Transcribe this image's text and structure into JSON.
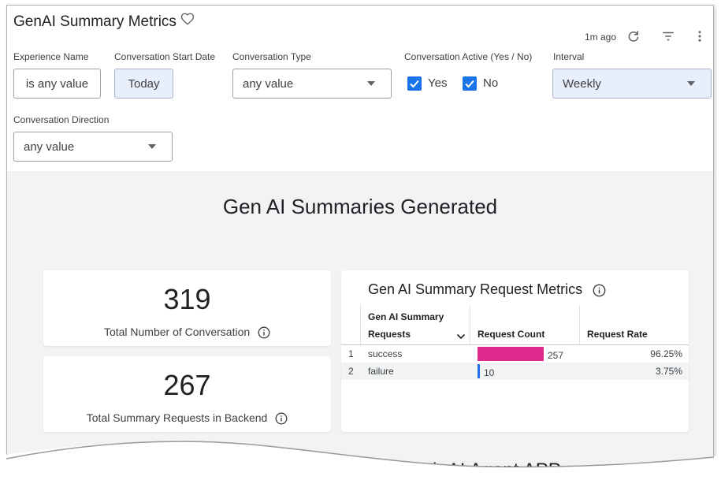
{
  "dashboard": {
    "title": "GenAI Summary Metrics",
    "updated": "1m ago",
    "icons": [
      "heart-icon",
      "refresh-icon",
      "filter-icon",
      "more-vert-icon"
    ]
  },
  "filters": {
    "experience_name": {
      "label": "Experience Name",
      "value": "is any value"
    },
    "conversation_start_date": {
      "label": "Conversation Start Date",
      "value": "Today"
    },
    "conversation_type": {
      "label": "Conversation Type",
      "value": "any value"
    },
    "conversation_active": {
      "label": "Conversation Active (Yes / No)",
      "yes_label": "Yes",
      "no_label": "No",
      "yes_checked": true,
      "no_checked": true
    },
    "interval": {
      "label": "Interval",
      "value": "Weekly"
    },
    "conversation_direction": {
      "label": "Conversation Direction",
      "value": "any value"
    }
  },
  "section": {
    "title": "Gen AI Summaries Generated",
    "next_title_partial": "...h AI Agent APP"
  },
  "kpis": [
    {
      "value": "319",
      "label": "Total Number of Conversation"
    },
    {
      "value": "267",
      "label": "Total Summary Requests in Backend"
    }
  ],
  "table": {
    "title": "Gen AI Summary Request Metrics",
    "columns": [
      "Gen AI Summary Requests",
      "Request Count",
      "Request Rate"
    ],
    "col1_line1": "Gen AI Summary",
    "col1_line2": "Requests",
    "rows": [
      {
        "index": "1",
        "name": "success",
        "count": "257",
        "rate": "96.25%"
      },
      {
        "index": "2",
        "name": "failure",
        "count": "10",
        "rate": "3.75%"
      }
    ]
  },
  "chart_data": {
    "type": "bar",
    "categories": [
      "success",
      "failure"
    ],
    "values": [
      257,
      10
    ],
    "colors": [
      "#e0298e",
      "#1a73e8"
    ]
  }
}
